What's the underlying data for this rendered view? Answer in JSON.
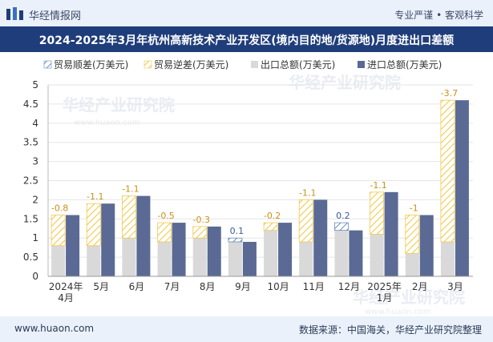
{
  "header": {
    "brand": "华经情报网",
    "tagline": "专业严谨 • 客观科学"
  },
  "footer": {
    "site": "www.huaon.com",
    "source": "数据来源：中国海关，华经产业研究院整理"
  },
  "watermark": {
    "main": "华经产业研究院",
    "sub": "www.huaon.com"
  },
  "colors": {
    "surplus": "#6b8bbd",
    "deficit": "#f2c94c",
    "export": "#d9d9d9",
    "import": "#5b6a94",
    "title_bg": "#1f3d7a"
  },
  "chart_data": {
    "type": "bar",
    "title": "2024-2025年3月年杭州高新技术产业开发区(境内目的地/货源地)月度进出口差额",
    "legend_position": "top-left",
    "legend": [
      {
        "key": "surplus",
        "label": "贸易顺差(万美元)"
      },
      {
        "key": "deficit",
        "label": "贸易逆差(万美元)"
      },
      {
        "key": "export",
        "label": "出口总额(万美元)"
      },
      {
        "key": "import",
        "label": "进口总额(万美元)"
      }
    ],
    "categories": [
      [
        "2024年",
        "4月"
      ],
      [
        "5月"
      ],
      [
        "6月"
      ],
      [
        "7月"
      ],
      [
        "8月"
      ],
      [
        "9月"
      ],
      [
        "10月"
      ],
      [
        "11月"
      ],
      [
        "12月"
      ],
      [
        "2025年",
        "1月"
      ],
      [
        "2月"
      ],
      [
        "3月"
      ]
    ],
    "export": [
      0.8,
      0.8,
      1.0,
      0.9,
      1.0,
      1.0,
      1.2,
      0.9,
      1.4,
      1.1,
      0.6,
      0.9
    ],
    "import": [
      1.6,
      1.9,
      2.1,
      1.4,
      1.3,
      0.9,
      1.4,
      2.0,
      1.2,
      2.2,
      1.6,
      4.6
    ],
    "balance_labels": [
      "-0.8",
      "-1.1",
      "-1.1",
      "-0.5",
      "-0.3",
      "0.1",
      "-0.2",
      "-1.1",
      "0.2",
      "-1.1",
      "-1",
      "-3.7"
    ],
    "ylim": [
      0,
      5
    ],
    "yticks": [
      "0",
      "0.5",
      "1",
      "1.5",
      "2",
      "2.5",
      "3",
      "3.5",
      "4",
      "4.5",
      "5"
    ],
    "grid": true
  }
}
